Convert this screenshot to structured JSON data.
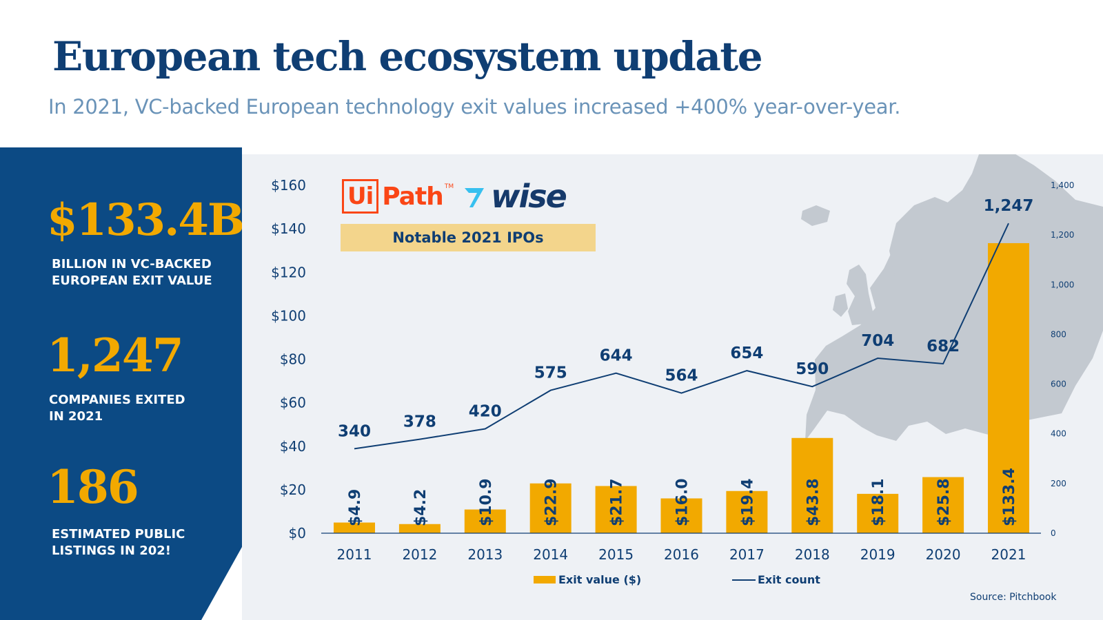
{
  "header": {
    "title": "European tech ecosystem update",
    "subtitle": "In 2021, VC-backed European technology exit values increased +400% year-over-year."
  },
  "stats": [
    {
      "value": "$133.4B",
      "label_line1": "BILLION IN VC-BACKED",
      "label_line2": "EUROPEAN EXIT VALUE"
    },
    {
      "value": "1,247",
      "label_line1": "COMPANIES EXITED",
      "label_line2": "IN 2021"
    },
    {
      "value": "186",
      "label_line1": "ESTIMATED PUBLIC",
      "label_line2": "LISTINGS IN 202!"
    }
  ],
  "ipos": {
    "uipath_box": "Ui",
    "uipath_text": "Path",
    "uipath_tm": "TM",
    "wise_text": "wise",
    "banner": "Notable 2021 IPOs"
  },
  "source": "Source: Pitchbook",
  "colors": {
    "navy": "#0f3e73",
    "sidebar": "#0c4a84",
    "gold": "#f2a900",
    "panel": "#eef1f5",
    "map": "#c3c9d0",
    "uipath": "#fa4616",
    "wise": "#163a6b",
    "wise_flag": "#37c0ef"
  },
  "chart_data": {
    "type": "bar",
    "categories": [
      "2011",
      "2012",
      "2013",
      "2014",
      "2015",
      "2016",
      "2017",
      "2018",
      "2019",
      "2020",
      "2021"
    ],
    "series": [
      {
        "name": "Exit value ($)",
        "type": "bar",
        "axis": "left",
        "values": [
          4.9,
          4.2,
          10.9,
          22.9,
          21.7,
          16.0,
          19.4,
          43.8,
          18.1,
          25.8,
          133.4
        ],
        "labels": [
          "$4.9",
          "$4.2",
          "$10.9",
          "$22.9",
          "$21.7",
          "$16.0",
          "$19.4",
          "$43.8",
          "$18.1",
          "$25.8",
          "$133.4"
        ]
      },
      {
        "name": "Exit count",
        "type": "line",
        "axis": "right",
        "values": [
          340,
          378,
          420,
          575,
          644,
          564,
          654,
          590,
          704,
          682,
          1247
        ],
        "labels": [
          "340",
          "378",
          "420",
          "575",
          "644",
          "564",
          "654",
          "590",
          "704",
          "682",
          "1,247"
        ]
      }
    ],
    "y_left": {
      "range": [
        0,
        160
      ],
      "ticks": [
        "$0",
        "$20",
        "$40",
        "$60",
        "$80",
        "$100",
        "$120",
        "$140",
        "$160"
      ]
    },
    "y_right": {
      "range": [
        0,
        1400
      ],
      "ticks": [
        "0",
        "200",
        "400",
        "600",
        "800",
        "1,000",
        "1,200",
        "1,400"
      ]
    },
    "grid": false,
    "legend": "bottom"
  }
}
